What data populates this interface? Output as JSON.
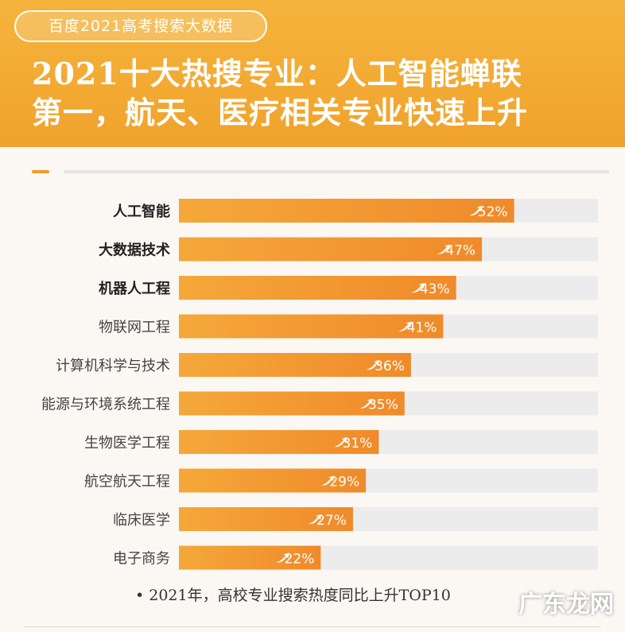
{
  "header": {
    "source_tag": "百度2021高考搜索大数据",
    "title_line1": "2021十大热搜专业：人工智能蝉联",
    "title_line2": "第一，航天、医疗相关专业快速上升"
  },
  "chart_data": {
    "type": "bar",
    "orientation": "horizontal",
    "categories": [
      "人工智能",
      "大数据技术",
      "机器人工程",
      "物联网工程",
      "计算机科学与技术",
      "能源与环境系统工程",
      "生物医学工程",
      "航空航天工程",
      "临床医学",
      "电子商务"
    ],
    "values": [
      52,
      47,
      43,
      41,
      36,
      35,
      31,
      29,
      27,
      22
    ],
    "labels": [
      "52%",
      "47%",
      "43%",
      "41%",
      "36%",
      "35%",
      "31%",
      "29%",
      "27%",
      "22%"
    ],
    "bold_categories": [
      "人工智能",
      "大数据技术",
      "机器人工程"
    ],
    "xlim": [
      0,
      65
    ],
    "grid": false,
    "legend": "none"
  },
  "footnote": "• 2021年，高校专业搜索热度同比上升TOP10",
  "watermark": "广东龙网",
  "colors": {
    "header": "#f0a22b",
    "bar_start": "#f5a83a",
    "bar_end": "#f08a2a",
    "track": "#ececec",
    "label": "#ffffff"
  }
}
